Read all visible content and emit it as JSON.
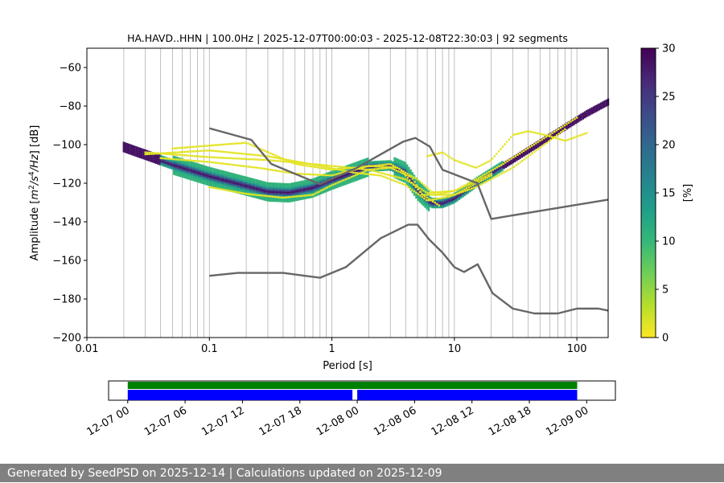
{
  "chart_data": [
    {
      "type": "heatmap",
      "title": "HA.HAVD..HHN | 100.0Hz | 2025-12-07T00:00:03 - 2025-12-08T22:30:03 | 92 segments",
      "xlabel": "Period [s]",
      "ylabel_parts": [
        "Amplitude [",
        "m",
        "2",
        "/",
        "s",
        "4",
        "/",
        "Hz",
        "] [dB]"
      ],
      "x_scale": "log",
      "xlim": [
        0.01,
        180
      ],
      "ylim": [
        -200,
        -50
      ],
      "x_ticks": [
        {
          "value": 0.01,
          "label": "0.01"
        },
        {
          "value": 0.1,
          "label": "0.1"
        },
        {
          "value": 1,
          "label": "1"
        },
        {
          "value": 10,
          "label": "10"
        },
        {
          "value": 100,
          "label": "100"
        }
      ],
      "y_ticks": [
        {
          "value": -60,
          "label": "−60"
        },
        {
          "value": -80,
          "label": "−80"
        },
        {
          "value": -100,
          "label": "−100"
        },
        {
          "value": -120,
          "label": "−120"
        },
        {
          "value": -140,
          "label": "−140"
        },
        {
          "value": -160,
          "label": "−160"
        },
        {
          "value": -180,
          "label": "−180"
        },
        {
          "value": -200,
          "label": "−200"
        }
      ],
      "grid": "vertical, log minor",
      "colorbar": {
        "label": "[%]",
        "colormap": "viridis_r",
        "range": [
          0,
          30
        ],
        "ticks": [
          {
            "value": 0,
            "label": "0"
          },
          {
            "value": 5,
            "label": "5"
          },
          {
            "value": 10,
            "label": "10"
          },
          {
            "value": 15,
            "label": "15"
          },
          {
            "value": 20,
            "label": "20"
          },
          {
            "value": 25,
            "label": "25"
          },
          {
            "value": 30,
            "label": "30"
          }
        ],
        "colors": [
          "#fde725",
          "#b5de2b",
          "#6ece58",
          "#35b779",
          "#1f9e89",
          "#26828e",
          "#31688e",
          "#3e4989",
          "#482878",
          "#440154"
        ]
      },
      "reference_curves": [
        {
          "color": "#666666",
          "points": [
            [
              0.1,
              -91.5
            ],
            [
              0.22,
              -97.5
            ],
            [
              0.32,
              -110
            ],
            [
              0.8,
              -120.5
            ],
            [
              1.6,
              -112
            ],
            [
              3.8,
              -98.5
            ],
            [
              4.8,
              -96.5
            ],
            [
              6.3,
              -101
            ],
            [
              8,
              -113
            ],
            [
              15.4,
              -120
            ],
            [
              20,
              -138.5
            ],
            [
              180,
              -128.5
            ]
          ]
        },
        {
          "color": "#666666",
          "points": [
            [
              0.1,
              -168
            ],
            [
              0.17,
              -166.5
            ],
            [
              0.4,
              -166.5
            ],
            [
              0.8,
              -169
            ],
            [
              1.3,
              -163.5
            ],
            [
              2.5,
              -148.5
            ],
            [
              4.2,
              -141.5
            ],
            [
              5,
              -141.5
            ],
            [
              6.2,
              -149
            ],
            [
              8,
              -156
            ],
            [
              10,
              -163.5
            ],
            [
              12,
              -166
            ],
            [
              15.5,
              -162
            ],
            [
              20.5,
              -177
            ],
            [
              30,
              -185
            ],
            [
              45,
              -187.5
            ],
            [
              70,
              -187.5
            ],
            [
              100,
              -185
            ],
            [
              150,
              -185
            ],
            [
              180,
              -186
            ]
          ]
        }
      ],
      "density": {
        "main_curve": [
          [
            0.02,
            -101.5
          ],
          [
            0.05,
            -110.5
          ],
          [
            0.1,
            -116.5
          ],
          [
            0.2,
            -121.5
          ],
          [
            0.3,
            -124.5
          ],
          [
            0.45,
            -125
          ],
          [
            0.7,
            -122.5
          ],
          [
            1,
            -118.5
          ],
          [
            2,
            -111.5
          ],
          [
            3,
            -111
          ],
          [
            4,
            -114.5
          ],
          [
            5,
            -123.5
          ],
          [
            6.5,
            -130.5
          ],
          [
            8,
            -130.5
          ],
          [
            10,
            -128
          ],
          [
            15,
            -120
          ],
          [
            30,
            -108
          ],
          [
            60,
            -96
          ],
          [
            120,
            -84
          ],
          [
            180,
            -78
          ]
        ],
        "sparse_curves": [
          [
            [
              0.03,
              -104
            ],
            [
              0.1,
              -106.5
            ],
            [
              0.3,
              -108
            ],
            [
              1,
              -111
            ],
            [
              2,
              -113
            ],
            [
              4,
              -118
            ],
            [
              6,
              -125
            ],
            [
              10,
              -124
            ],
            [
              15,
              -118
            ],
            [
              25,
              -110
            ],
            [
              50,
              -98
            ],
            [
              100,
              -86
            ]
          ],
          [
            [
              0.03,
              -105
            ],
            [
              0.1,
              -103
            ],
            [
              0.3,
              -106
            ],
            [
              0.8,
              -111
            ],
            [
              1.5,
              -114.5
            ],
            [
              2.5,
              -116
            ],
            [
              4,
              -121
            ],
            [
              6,
              -129
            ],
            [
              9,
              -127
            ],
            [
              15,
              -122
            ],
            [
              30,
              -112
            ],
            [
              80,
              -92
            ]
          ],
          [
            [
              0.05,
              -102
            ],
            [
              0.2,
              -99
            ],
            [
              0.5,
              -110
            ],
            [
              1,
              -113
            ],
            [
              2.2,
              -111
            ],
            [
              3,
              -110
            ],
            [
              5,
              -118
            ],
            [
              7,
              -126
            ],
            [
              10,
              -124
            ],
            [
              14,
              -120
            ],
            [
              20,
              -115
            ]
          ],
          [
            [
              0.04,
              -107
            ],
            [
              0.1,
              -109
            ],
            [
              0.25,
              -112
            ],
            [
              0.5,
              -115
            ],
            [
              1,
              -116
            ],
            [
              2,
              -111
            ],
            [
              3.5,
              -112
            ],
            [
              5.5,
              -126
            ],
            [
              10,
              -126
            ],
            [
              20,
              -116
            ]
          ],
          [
            [
              6,
              -106
            ],
            [
              8,
              -104
            ],
            [
              10,
              -108
            ],
            [
              15,
              -112
            ],
            [
              20,
              -108
            ],
            [
              30,
              -95
            ],
            [
              40,
              -93
            ],
            [
              55,
              -95
            ],
            [
              80,
              -98
            ],
            [
              120,
              -94
            ]
          ],
          [
            [
              0.1,
              -122
            ],
            [
              0.2,
              -125.5
            ],
            [
              0.4,
              -127.5
            ],
            [
              0.7,
              -126
            ],
            [
              1,
              -121
            ],
            [
              2,
              -113
            ],
            [
              3,
              -112
            ],
            [
              4.5,
              -117
            ],
            [
              5.5,
              -126
            ],
            [
              7.5,
              -131.5
            ]
          ]
        ]
      }
    },
    {
      "type": "timeline",
      "ticks": [
        "12-07 00",
        "12-07 06",
        "12-07 12",
        "12-07 18",
        "12-08 00",
        "12-08 06",
        "12-08 12",
        "12-08 18",
        "12-09 00"
      ],
      "range_hours": [
        -2,
        51
      ],
      "rows": [
        {
          "color": "#008000",
          "segments": [
            [
              0.0,
              47.0
            ]
          ]
        },
        {
          "color": "#0000ff",
          "segments": [
            [
              0.0,
              23.5
            ],
            [
              24.0,
              47.0
            ]
          ]
        }
      ]
    }
  ],
  "footer": {
    "text": "Generated by SeedPSD on 2025-12-14 | Calculations updated on 2025-12-09"
  }
}
